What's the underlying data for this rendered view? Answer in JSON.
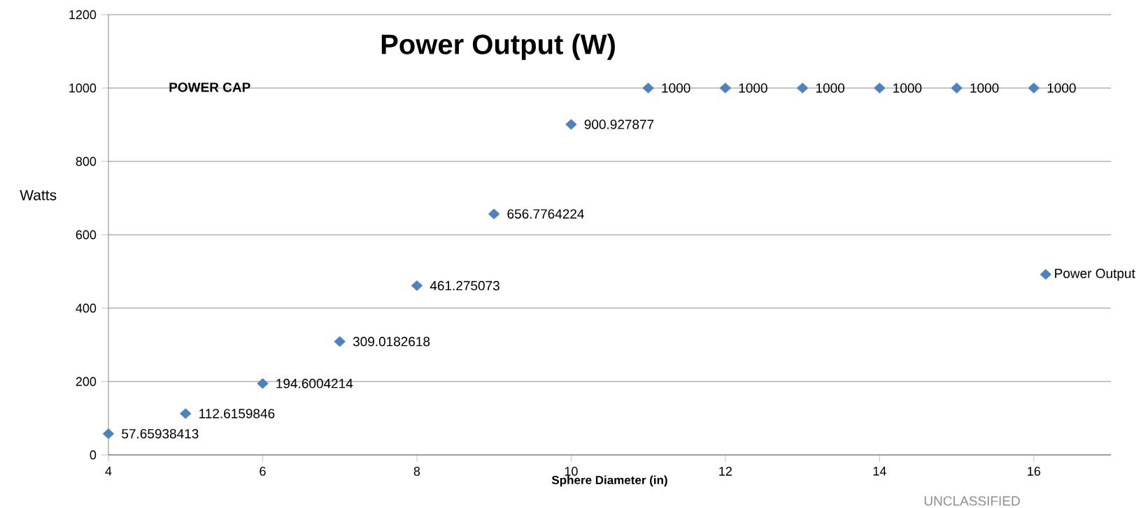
{
  "chart_data": {
    "type": "scatter",
    "title": "Power Output (W)",
    "xlabel": "Sphere Diameter (in)",
    "ylabel": "Watts",
    "x": [
      4,
      5,
      6,
      7,
      8,
      9,
      10,
      11,
      12,
      13,
      14,
      15,
      16
    ],
    "series": [
      {
        "name": "Power Output",
        "color": "#4f81bd",
        "values": [
          57.65938413,
          112.6159846,
          194.6004214,
          309.0182618,
          461.275073,
          656.7764224,
          900.927877,
          1000,
          1000,
          1000,
          1000,
          1000,
          1000
        ]
      }
    ],
    "xlim": [
      4,
      17
    ],
    "xticks": [
      4,
      6,
      8,
      10,
      12,
      14,
      16
    ],
    "ylim": [
      0,
      1200
    ],
    "yticks": [
      0,
      200,
      400,
      600,
      800,
      1000,
      1200
    ],
    "grid": "y",
    "legend": "right",
    "marker": "diamond",
    "data_labels": true,
    "annotations": [
      "POWER CAP",
      "UNCLASSIFIED"
    ]
  }
}
